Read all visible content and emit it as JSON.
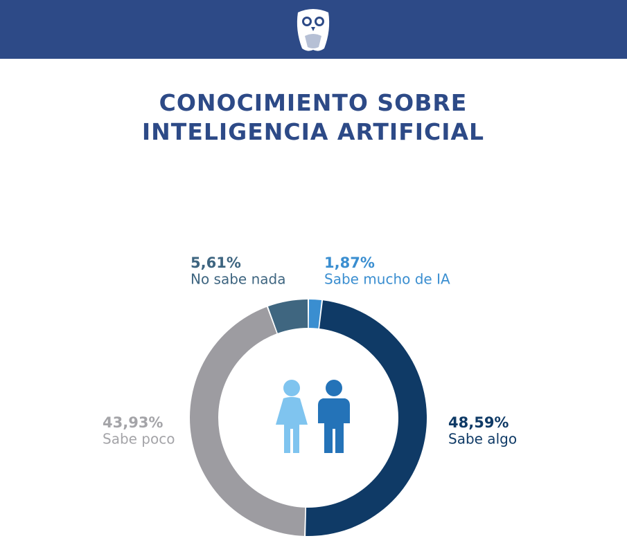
{
  "chart_data": {
    "type": "donut",
    "title": "CONOCIMIENTO SOBRE INTELIGENCIA ARTIFICIAL",
    "categories": [
      "Sabe mucho de IA",
      "Sabe algo",
      "Sabe poco",
      "No sabe nada"
    ],
    "values": [
      1.87,
      48.59,
      43.93,
      5.61
    ],
    "value_labels": [
      "1,87%",
      "48,59%",
      "43,93%",
      "5,61%"
    ],
    "colors": [
      "#3a8ed0",
      "#0f3a66",
      "#9d9ca1",
      "#3f6680"
    ]
  }
}
